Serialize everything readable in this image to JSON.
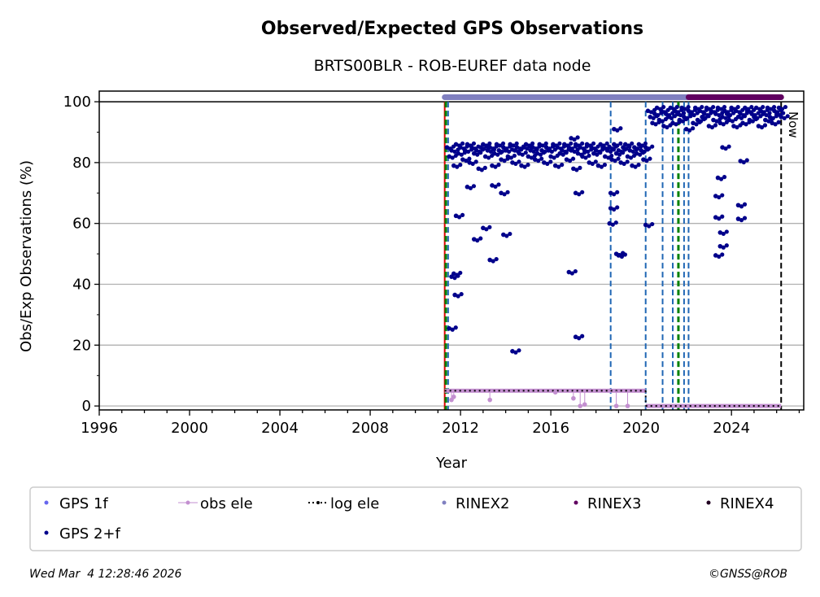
{
  "chart_data": {
    "type": "scatter",
    "title": "Observed/Expected GPS Observations",
    "subtitle": "BRTS00BLR - ROB-EUREF data node",
    "xlabel": "Year",
    "ylabel": "Obs/Exp Observations (%)",
    "xlim": [
      1996,
      2027.2
    ],
    "ylim": [
      -1.3,
      103.5
    ],
    "xticks": [
      "1996",
      "2000",
      "2004",
      "2008",
      "2012",
      "2016",
      "2020",
      "2024"
    ],
    "yticks": [
      "0",
      "20",
      "40",
      "60",
      "80",
      "100"
    ],
    "grid": true,
    "now_label": "Now",
    "now_year": 2026.2,
    "legend": {
      "placement": "bottom",
      "entries": [
        "GPS 1f",
        "obs ele",
        "log ele",
        "RINEX2",
        "RINEX3",
        "RINEX4",
        "GPS 2+f"
      ]
    },
    "colors": {
      "gps1f": "#6666ee",
      "gps2f": "#00008b",
      "obs_ele": "#c38fd0",
      "log_ele": "#000000",
      "rinex2": "#8080c0",
      "rinex3": "#600060",
      "rinex4": "#200020",
      "red": "#e00000",
      "green": "#008000",
      "blue": "#1f66b4"
    },
    "gps2f_band1": {
      "x_start": 2011.4,
      "x_step": 0.1,
      "values": [
        85,
        82,
        84,
        79,
        86,
        83,
        85,
        81,
        84,
        86,
        80,
        85,
        83,
        84,
        78,
        85,
        86,
        82,
        84,
        85,
        79,
        83,
        86,
        84,
        81,
        85,
        84,
        82,
        86,
        80,
        84,
        85,
        83,
        79,
        85,
        86,
        82,
        84,
        85,
        81,
        83,
        86,
        84,
        80,
        85,
        84,
        82,
        86,
        79,
        85,
        83,
        84,
        86,
        81,
        85,
        84,
        78,
        86,
        83,
        85,
        82,
        84,
        86,
        80,
        85,
        83,
        84,
        79,
        86,
        85,
        82,
        84,
        85,
        81,
        86,
        83,
        84,
        80,
        85,
        86,
        82,
        84,
        79,
        85,
        83,
        86,
        84,
        81,
        85
      ]
    },
    "gps2f_band2": {
      "x_start": 2020.3,
      "x_step": 0.1,
      "values": [
        97,
        95,
        93,
        96,
        98,
        94,
        97,
        92,
        96,
        95,
        98,
        93,
        97,
        96,
        94,
        98,
        95,
        91,
        97,
        96,
        93,
        98,
        94,
        97,
        95,
        96,
        98,
        92,
        97,
        94,
        96,
        98,
        93,
        95,
        97,
        96,
        94,
        98,
        92,
        97,
        95,
        96,
        93,
        98,
        97,
        94,
        96,
        95,
        98,
        92,
        97,
        96,
        94,
        98,
        95,
        93,
        97,
        96,
        98,
        95
      ]
    },
    "gps2f_outliers": [
      [
        2011.5,
        25.5
      ],
      [
        2011.6,
        42.5
      ],
      [
        2011.7,
        43.5
      ],
      [
        2011.75,
        36.5
      ],
      [
        2011.8,
        62.5
      ],
      [
        2012.3,
        72
      ],
      [
        2012.6,
        54.8
      ],
      [
        2013.0,
        58.5
      ],
      [
        2013.3,
        48
      ],
      [
        2013.4,
        72.5
      ],
      [
        2013.8,
        70
      ],
      [
        2013.9,
        56.3
      ],
      [
        2014.3,
        18
      ],
      [
        2016.8,
        44
      ],
      [
        2017.1,
        22.7
      ],
      [
        2017.1,
        70
      ],
      [
        2016.9,
        88
      ],
      [
        2018.6,
        60
      ],
      [
        2018.65,
        65
      ],
      [
        2018.65,
        70
      ],
      [
        2018.9,
        50
      ],
      [
        2019.0,
        49.5
      ],
      [
        2018.8,
        91
      ],
      [
        2020.2,
        59.5
      ],
      [
        2023.3,
        49.5
      ],
      [
        2023.3,
        62
      ],
      [
        2023.3,
        69
      ],
      [
        2023.4,
        75
      ],
      [
        2023.5,
        52.5
      ],
      [
        2023.5,
        57
      ],
      [
        2023.6,
        85
      ],
      [
        2024.3,
        61.5
      ],
      [
        2024.3,
        66
      ],
      [
        2024.4,
        80.5
      ]
    ],
    "obs_ele": [
      {
        "from": 2011.3,
        "to": 2020.2,
        "value": 5
      },
      {
        "from": 2020.2,
        "to": 2026.2,
        "value": 0
      }
    ],
    "obs_ele_points": [
      [
        2011.6,
        2
      ],
      [
        2011.7,
        3
      ],
      [
        2013.3,
        2
      ],
      [
        2016.2,
        4.5
      ],
      [
        2017.0,
        2.5
      ],
      [
        2017.3,
        0
      ],
      [
        2017.5,
        0.5
      ],
      [
        2018.9,
        0
      ],
      [
        2019.4,
        0
      ]
    ],
    "rinex_bars": [
      {
        "name": "RINEX2",
        "from": 2011.3,
        "to": 2022.1,
        "value": 101.5
      },
      {
        "name": "RINEX3",
        "from": 2022.1,
        "to": 2026.2,
        "value": 101.5
      }
    ],
    "vlines": [
      {
        "x": 2011.3,
        "color": "red",
        "style": "solid"
      },
      {
        "x": 2011.35,
        "color": "green",
        "style": "dash"
      },
      {
        "x": 2011.45,
        "color": "blue",
        "style": "dash"
      },
      {
        "x": 2018.65,
        "color": "blue",
        "style": "dash"
      },
      {
        "x": 2020.2,
        "color": "blue",
        "style": "dash"
      },
      {
        "x": 2020.95,
        "color": "blue",
        "style": "dash"
      },
      {
        "x": 2021.4,
        "color": "blue",
        "style": "dash"
      },
      {
        "x": 2021.65,
        "color": "green",
        "style": "dash"
      },
      {
        "x": 2021.9,
        "color": "blue",
        "style": "dash"
      },
      {
        "x": 2022.1,
        "color": "blue",
        "style": "dash"
      },
      {
        "x": 2026.2,
        "color": "log_ele",
        "style": "dash"
      }
    ]
  },
  "footer": {
    "timestamp": "Wed Mar  4 12:28:46 2026",
    "copyright": "©GNSS@ROB"
  }
}
